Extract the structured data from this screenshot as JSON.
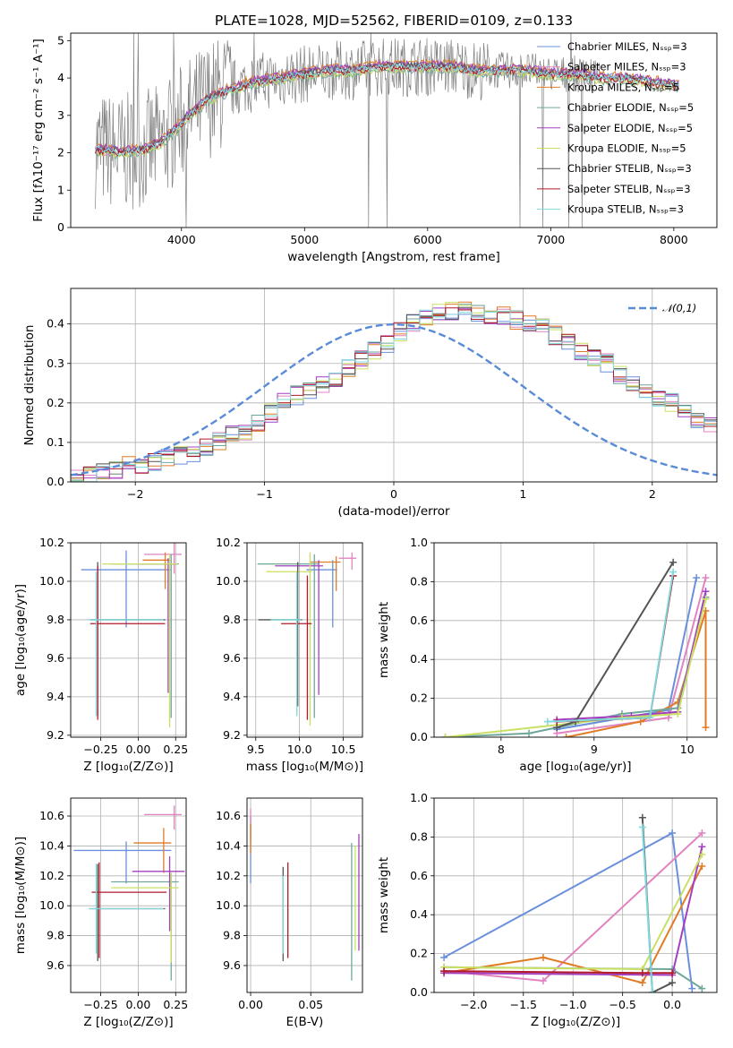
{
  "colors": [
    "#6a8fdc",
    "#e183c0",
    "#e07b26",
    "#6fa79a",
    "#a43fc0",
    "#c9e063",
    "#555555",
    "#b01a2a",
    "#7fd8dc"
  ],
  "chart_data": [
    {
      "id": "spectrum",
      "type": "line",
      "title": "PLATE=1028, MJD=52562, FIBERID=0109, z=0.133",
      "xlabel": "wavelength [Angstrom, rest frame]",
      "ylabel": "Flux [fλ10⁻¹⁷ erg cm⁻² s⁻¹ A⁻¹]",
      "xlim": [
        3100,
        8350
      ],
      "ylim": [
        0,
        5.2
      ],
      "xticks": [
        "4000",
        "5000",
        "6000",
        "7000",
        "8000"
      ],
      "yticks": [
        "0",
        "1",
        "2",
        "3",
        "4",
        "5"
      ],
      "legend_loc": "upper right",
      "legend": [
        "Chabrier MILES, Nₛₛₚ=3",
        "Salpeter MILES, Nₛₛₚ=3",
        "Kroupa MILES, Nₛₛₚ=5",
        "Chabrier ELODIE, Nₛₛₚ=5",
        "Salpeter ELODIE, Nₛₛₚ=5",
        "Kroupa ELODIE, Nₛₛₚ=5",
        "Chabrier STELIB, Nₛₛₚ=3",
        "Salpeter STELIB, Nₛₛₚ=3",
        "Kroupa STELIB, Nₛₛₚ=3"
      ],
      "model_curve": {
        "x": [
          3300,
          3500,
          3700,
          3850,
          4000,
          4200,
          4400,
          4600,
          4800,
          5000,
          5200,
          5400,
          5600,
          5800,
          6000,
          6200,
          6400,
          6600,
          6800,
          7000,
          7200,
          7400,
          7600,
          7800,
          8000
        ],
        "y": [
          2.1,
          2.0,
          2.1,
          2.3,
          2.8,
          3.4,
          3.7,
          3.9,
          4.0,
          4.1,
          4.2,
          4.2,
          4.3,
          4.3,
          4.3,
          4.3,
          4.2,
          4.2,
          4.2,
          4.1,
          4.1,
          4.0,
          4.0,
          3.9,
          3.8
        ]
      },
      "data_span": {
        "x_min": 3300,
        "x_max": 7400,
        "y_min": 0,
        "y_max": 5.2
      }
    },
    {
      "id": "residuals",
      "type": "step",
      "xlabel": "(data-model)/error",
      "ylabel": "Normed distribution",
      "xlim": [
        -2.5,
        2.5
      ],
      "ylim": [
        0,
        0.49
      ],
      "xticks": [
        "−2",
        "−1",
        "0",
        "1",
        "2"
      ],
      "yticks": [
        "0.0",
        "0.1",
        "0.2",
        "0.3",
        "0.4"
      ],
      "legend": [
        "𝒩(0,1)"
      ],
      "legend_loc": "upper right",
      "bin_width": 0.1,
      "bin_start": -2.5,
      "histogram": [
        0.015,
        0.018,
        0.024,
        0.031,
        0.04,
        0.042,
        0.05,
        0.06,
        0.07,
        0.075,
        0.09,
        0.105,
        0.12,
        0.13,
        0.15,
        0.175,
        0.2,
        0.22,
        0.23,
        0.25,
        0.265,
        0.29,
        0.31,
        0.33,
        0.35,
        0.38,
        0.4,
        0.42,
        0.43,
        0.43,
        0.44,
        0.43,
        0.42,
        0.42,
        0.41,
        0.4,
        0.39,
        0.37,
        0.35,
        0.33,
        0.31,
        0.3,
        0.27,
        0.25,
        0.23,
        0.21,
        0.2,
        0.18,
        0.16,
        0.14
      ],
      "gaussian": {
        "mean": 0,
        "sigma": 1
      }
    },
    {
      "id": "age_vs_Z",
      "type": "errorbar",
      "xlabel": "Z [log₁₀(Z/Z⊙)]",
      "ylabel": "age  [log₁₀(age/yr)]",
      "xlim": [
        -0.45,
        0.32
      ],
      "ylim": [
        9.19,
        10.2
      ],
      "xticks": [
        "−0.25",
        "0.00",
        "0.25"
      ],
      "yticks": [
        "9.2",
        "9.4",
        "9.6",
        "9.8",
        "10.0",
        "10.2"
      ],
      "points": [
        {
          "x": -0.08,
          "y": 10.06,
          "xerr": [
            0.3,
            0.3
          ],
          "yerr": [
            0.3,
            0.1
          ]
        },
        {
          "x": 0.24,
          "y": 10.14,
          "xerr": [
            0.2,
            0.05
          ],
          "yerr": [
            0.1,
            0.06
          ]
        },
        {
          "x": 0.18,
          "y": 10.11,
          "xerr": [
            0.15,
            0.03
          ],
          "yerr": [
            0.15,
            0.04
          ]
        },
        {
          "x": 0.22,
          "y": 10.09,
          "xerr": [
            0.4,
            0.05
          ],
          "yerr": [
            0.8,
            0.05
          ]
        },
        {
          "x": 0.2,
          "y": 10.09,
          "xerr": [
            0.2,
            0.05
          ],
          "yerr": [
            0.67,
            0.03
          ]
        },
        {
          "x": 0.21,
          "y": 10.09,
          "xerr": [
            0.45,
            0.05
          ],
          "yerr": [
            0.85,
            0.05
          ]
        },
        {
          "x": -0.27,
          "y": 9.8,
          "xerr": [
            0.05,
            0.45
          ],
          "yerr": [
            0.5,
            0.3
          ]
        },
        {
          "x": -0.27,
          "y": 9.78,
          "xerr": [
            0.05,
            0.45
          ],
          "yerr": [
            0.5,
            0.3
          ]
        },
        {
          "x": -0.28,
          "y": 9.8,
          "xerr": [
            0.05,
            0.45
          ],
          "yerr": [
            0.5,
            0.25
          ]
        }
      ]
    },
    {
      "id": "age_vs_mass",
      "type": "errorbar",
      "xlabel": "mass [log₁₀(M/M⊙)]",
      "ylabel": "",
      "xlim": [
        9.4,
        10.72
      ],
      "ylim": [
        9.19,
        10.2
      ],
      "xticks": [
        "9.5",
        "10.0",
        "10.5"
      ],
      "yticks": [
        "9.2",
        "9.4",
        "9.6",
        "9.8",
        "10.0",
        "10.2"
      ],
      "points": [
        {
          "x": 10.38,
          "y": 10.06,
          "xerr": [
            0.3,
            0.05
          ],
          "yerr": [
            0.3,
            0.05
          ]
        },
        {
          "x": 10.6,
          "y": 10.12,
          "xerr": [
            0.15,
            0.05
          ],
          "yerr": [
            0.06,
            0.03
          ]
        },
        {
          "x": 10.42,
          "y": 10.1,
          "xerr": [
            0.3,
            0.05
          ],
          "yerr": [
            0.15,
            0.03
          ]
        },
        {
          "x": 10.17,
          "y": 10.09,
          "xerr": [
            0.65,
            0.05
          ],
          "yerr": [
            0.8,
            0.05
          ]
        },
        {
          "x": 10.22,
          "y": 10.08,
          "xerr": [
            0.5,
            0.05
          ],
          "yerr": [
            0.67,
            0.03
          ]
        },
        {
          "x": 10.12,
          "y": 10.05,
          "xerr": [
            0.5,
            0.02
          ],
          "yerr": [
            0.8,
            0.1
          ]
        },
        {
          "x": 9.98,
          "y": 9.8,
          "xerr": [
            0.45,
            0.05
          ],
          "yerr": [
            0.45,
            0.3
          ]
        },
        {
          "x": 10.09,
          "y": 9.78,
          "xerr": [
            0.3,
            0.05
          ],
          "yerr": [
            0.5,
            0.25
          ]
        },
        {
          "x": 9.97,
          "y": 9.8,
          "xerr": [
            0.3,
            0.05
          ],
          "yerr": [
            0.5,
            0.25
          ]
        }
      ]
    },
    {
      "id": "weight_vs_age",
      "type": "line",
      "xlabel": "age  [log₁₀(age/yr)]",
      "ylabel": "mass weight",
      "xlim": [
        7.28,
        10.32
      ],
      "ylim": [
        0,
        1.0
      ],
      "xticks": [
        "8",
        "9",
        "10"
      ],
      "yticks": [
        "0.0",
        "0.2",
        "0.4",
        "0.6",
        "0.8",
        "1.0"
      ],
      "series": [
        {
          "x": [
            8.6,
            9.8,
            10.1
          ],
          "y": [
            0.04,
            0.14,
            0.82
          ]
        },
        {
          "x": [
            8.6,
            9.8,
            10.2
          ],
          "y": [
            0.02,
            0.1,
            0.82
          ]
        },
        {
          "x": [
            8.7,
            9.5,
            9.9,
            10.2,
            10.2
          ],
          "y": [
            0.0,
            0.08,
            0.18,
            0.65,
            0.05
          ]
        },
        {
          "x": [
            7.4,
            8.3,
            9.3,
            9.9,
            10.2
          ],
          "y": [
            0.0,
            0.02,
            0.12,
            0.15,
            0.72
          ]
        },
        {
          "x": [
            8.6,
            9.4,
            9.9,
            10.2
          ],
          "y": [
            0.09,
            0.11,
            0.13,
            0.75
          ]
        },
        {
          "x": [
            7.4,
            9.3,
            9.9,
            10.2
          ],
          "y": [
            0.0,
            0.1,
            0.12,
            0.71
          ]
        },
        {
          "x": [
            8.6,
            8.8,
            9.85
          ],
          "y": [
            0.05,
            0.08,
            0.9
          ]
        },
        {
          "x": [
            8.6,
            9.6,
            9.85
          ],
          "y": [
            0.08,
            0.1,
            0.83
          ]
        },
        {
          "x": [
            8.5,
            9.6,
            9.85
          ],
          "y": [
            0.08,
            0.1,
            0.85
          ]
        }
      ]
    },
    {
      "id": "mass_vs_Z",
      "type": "errorbar",
      "xlabel": "Z [log₁₀(Z/Z⊙)]",
      "ylabel": "mass [log₁₀(M/M⊙)]",
      "xlim": [
        -0.45,
        0.32
      ],
      "ylim": [
        9.42,
        10.72
      ],
      "xticks": [
        "−0.25",
        "0.00",
        "0.25"
      ],
      "yticks": [
        "9.6",
        "9.8",
        "10.0",
        "10.2",
        "10.4",
        "10.6"
      ],
      "points": [
        {
          "x": -0.08,
          "y": 10.37,
          "xerr": [
            0.35,
            0.3
          ],
          "yerr": [
            0.22,
            0.06
          ]
        },
        {
          "x": 0.24,
          "y": 10.61,
          "xerr": [
            0.2,
            0.05
          ],
          "yerr": [
            0.1,
            0.06
          ]
        },
        {
          "x": 0.17,
          "y": 10.42,
          "xerr": [
            0.2,
            0.05
          ],
          "yerr": [
            0.2,
            0.1
          ]
        },
        {
          "x": 0.22,
          "y": 10.16,
          "xerr": [
            0.4,
            0.05
          ],
          "yerr": [
            0.66,
            0.06
          ]
        },
        {
          "x": 0.21,
          "y": 10.23,
          "xerr": [
            0.25,
            0.1
          ],
          "yerr": [
            0.4,
            0.1
          ]
        },
        {
          "x": 0.22,
          "y": 10.12,
          "xerr": [
            0.4,
            0.05
          ],
          "yerr": [
            0.5,
            0.1
          ]
        },
        {
          "x": -0.27,
          "y": 9.98,
          "xerr": [
            0.05,
            0.45
          ],
          "yerr": [
            0.35,
            0.3
          ]
        },
        {
          "x": -0.26,
          "y": 10.09,
          "xerr": [
            0.05,
            0.45
          ],
          "yerr": [
            0.44,
            0.2
          ]
        },
        {
          "x": -0.28,
          "y": 9.98,
          "xerr": [
            0.05,
            0.45
          ],
          "yerr": [
            0.3,
            0.3
          ]
        }
      ]
    },
    {
      "id": "mass_vs_ebv",
      "type": "errorbar",
      "xlabel": "E(B-V)",
      "ylabel": "",
      "xlim": [
        -0.003,
        0.093
      ],
      "ylim": [
        9.42,
        10.72
      ],
      "xticks": [
        "0.00",
        "0.05"
      ],
      "yticks": [
        "9.6",
        "9.8",
        "10.0",
        "10.2",
        "10.4",
        "10.6"
      ],
      "points": [
        {
          "x": 0.0,
          "y": 10.4,
          "yerr": [
            0.25,
            0.2
          ]
        },
        {
          "x": 0.0,
          "y": 10.55,
          "yerr": [
            0.12,
            0.1
          ]
        },
        {
          "x": 0.0,
          "y": 10.47,
          "yerr": [
            0.12,
            0.08
          ]
        },
        {
          "x": 0.084,
          "y": 10.16,
          "yerr": [
            0.66,
            0.26
          ]
        },
        {
          "x": 0.09,
          "y": 10.23,
          "yerr": [
            0.53,
            0.25
          ]
        },
        {
          "x": 0.087,
          "y": 10.12,
          "yerr": [
            0.42,
            0.28
          ]
        },
        {
          "x": 0.027,
          "y": 9.98,
          "yerr": [
            0.35,
            0.28
          ]
        },
        {
          "x": 0.031,
          "y": 10.09,
          "yerr": [
            0.44,
            0.2
          ]
        },
        {
          "x": 0.027,
          "y": 9.98,
          "yerr": [
            0.3,
            0.22
          ]
        }
      ]
    },
    {
      "id": "weight_vs_Z",
      "type": "line",
      "xlabel": "Z [log₁₀(Z/Z⊙)]",
      "ylabel": "mass weight",
      "xlim": [
        -2.4,
        0.45
      ],
      "ylim": [
        0,
        1.0
      ],
      "xticks": [
        "−2.0",
        "−1.5",
        "−1.0",
        "−0.5",
        "0.0",
        "0.5"
      ],
      "yticks": [
        "0.0",
        "0.2",
        "0.4",
        "0.6",
        "0.8",
        "1.0"
      ],
      "series": [
        {
          "x": [
            -2.3,
            0.0,
            0.2
          ],
          "y": [
            0.18,
            0.82,
            0.02
          ]
        },
        {
          "x": [
            -2.3,
            -1.3,
            0.3
          ],
          "y": [
            0.11,
            0.06,
            0.82
          ]
        },
        {
          "x": [
            -2.3,
            -1.3,
            -0.3,
            0.3
          ],
          "y": [
            0.1,
            0.18,
            0.05,
            0.65
          ]
        },
        {
          "x": [
            -2.3,
            0.0,
            0.3
          ],
          "y": [
            0.13,
            0.12,
            0.02
          ]
        },
        {
          "x": [
            -2.3,
            0.0,
            0.3
          ],
          "y": [
            0.1,
            0.09,
            0.75
          ]
        },
        {
          "x": [
            -2.3,
            -0.3,
            0.3
          ],
          "y": [
            0.13,
            0.12,
            0.71
          ]
        },
        {
          "x": [
            -0.3,
            -0.2,
            0.0
          ],
          "y": [
            0.9,
            0.0,
            0.05
          ]
        },
        {
          "x": [
            -2.3,
            -0.3,
            0.0
          ],
          "y": [
            0.11,
            0.1,
            0.1
          ]
        },
        {
          "x": [
            -0.3,
            -0.2
          ],
          "y": [
            0.85,
            0.0
          ]
        }
      ]
    }
  ]
}
